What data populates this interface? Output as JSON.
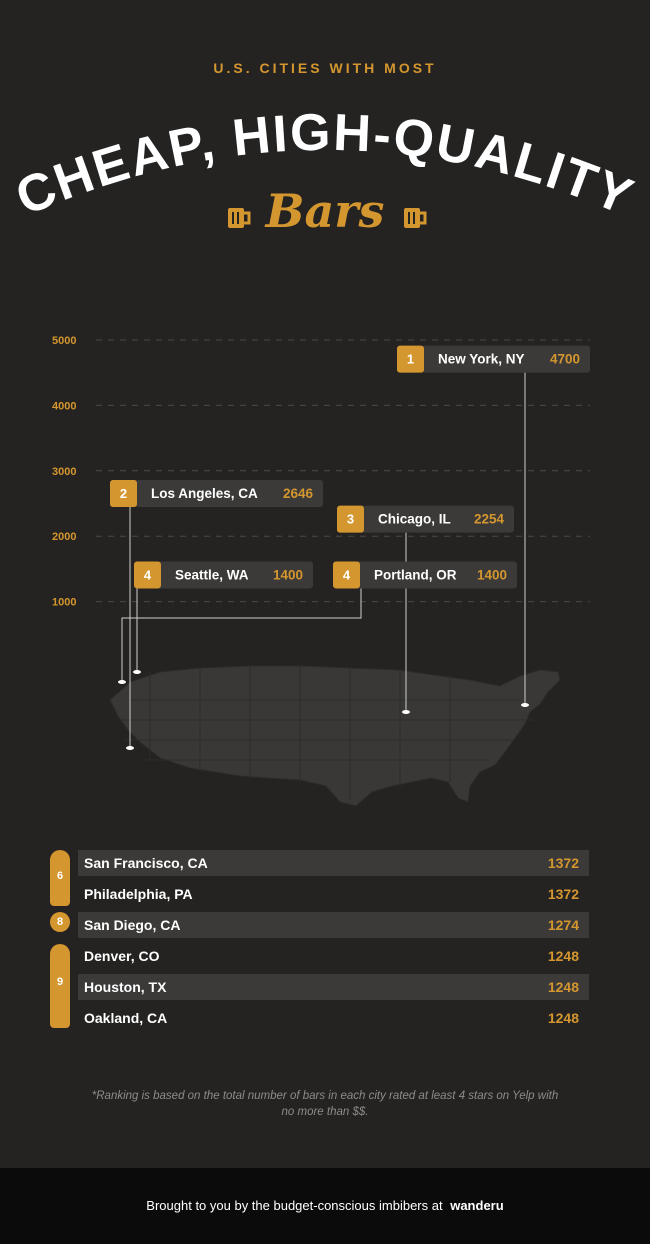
{
  "header": {
    "kicker": "U.S. CITIES WITH MOST",
    "headline": "CHEAP, HIGH-QUALITY",
    "subtitle": "Bars",
    "mug_icon": "beer-mug-icon"
  },
  "colors": {
    "background": "#242322",
    "accent": "#d4962e",
    "label_bg": "#3b3a39",
    "footer_bg": "#0b0b0b"
  },
  "chart_data": {
    "type": "callout",
    "y_ticks": [
      "5000",
      "4000",
      "3000",
      "2000",
      "1000"
    ],
    "ylim": [
      0,
      5000
    ],
    "grid": true,
    "points": [
      {
        "rank": "1",
        "city": "New York, NY",
        "value": 4700
      },
      {
        "rank": "2",
        "city": "Los Angeles, CA",
        "value": 2646
      },
      {
        "rank": "3",
        "city": "Chicago, IL",
        "value": 2254
      },
      {
        "rank": "4",
        "city": "Seattle, WA",
        "value": 1400
      },
      {
        "rank": "4",
        "city": "Portland, OR",
        "value": 1400
      }
    ]
  },
  "ranking": {
    "groups": [
      {
        "rank": "6",
        "rows": [
          {
            "city": "San Francisco, CA",
            "value": "1372"
          },
          {
            "city": "Philadelphia, PA",
            "value": "1372"
          }
        ]
      },
      {
        "rank": "8",
        "rows": [
          {
            "city": "San Diego, CA",
            "value": "1274"
          }
        ]
      },
      {
        "rank": "9",
        "rows": [
          {
            "city": "Denver, CO",
            "value": "1248"
          },
          {
            "city": "Houston, TX",
            "value": "1248"
          },
          {
            "city": "Oakland, CA",
            "value": "1248"
          }
        ]
      }
    ]
  },
  "footnote": "*Ranking is based on the total number of bars in each city rated at least 4 stars on Yelp with no more than $$.",
  "footer": {
    "text": "Brought to you by the budget-conscious imbibers at",
    "brand": "wanderu"
  }
}
